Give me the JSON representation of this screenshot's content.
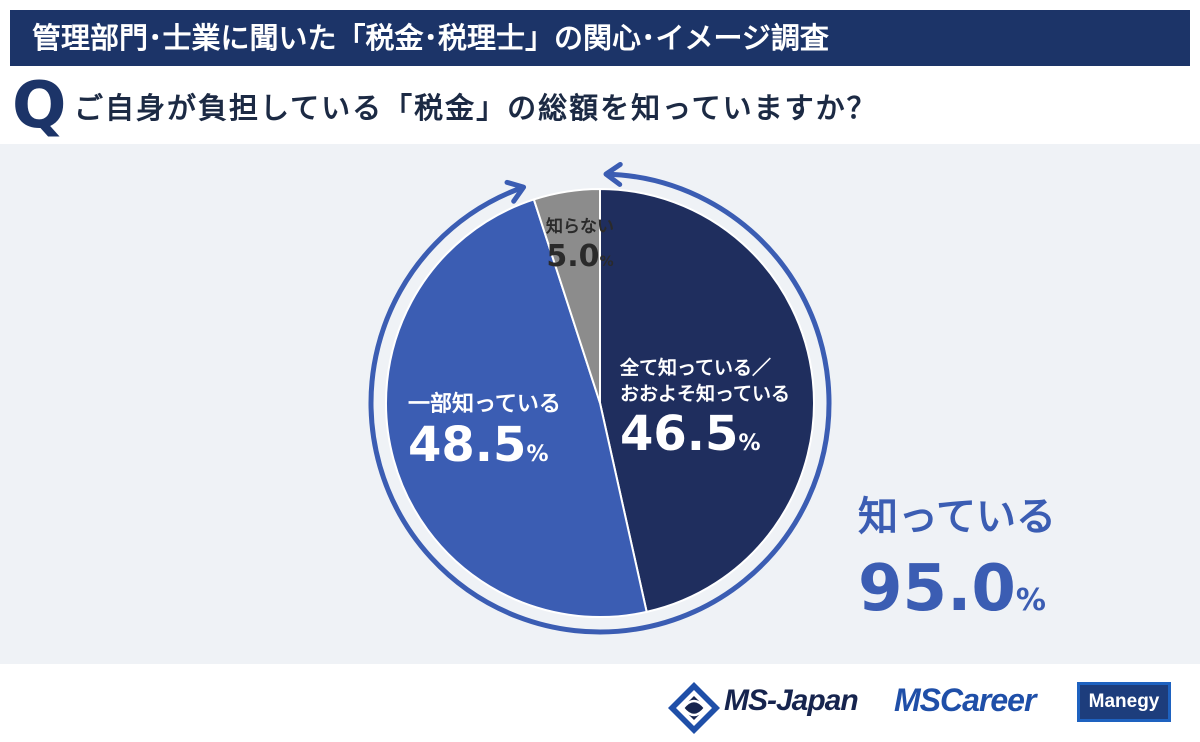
{
  "header": {
    "title": "管理部門･士業に聞いた「税金･税理士」の関心･イメージ調査"
  },
  "question": {
    "mark": "Q",
    "text": "ご自身が負担している「税金」の総額を知っていますか？"
  },
  "chart_data": {
    "type": "pie",
    "unit": "%",
    "slices": [
      {
        "label_lines": [
          "全て知っている／",
          "おおよそ知っている"
        ],
        "value": 46.5,
        "value_text": "46.5",
        "color": "#1f2e5e",
        "label_color": "#ffffff"
      },
      {
        "label_lines": [
          "一部知っている"
        ],
        "value": 48.5,
        "value_text": "48.5",
        "color": "#3b5db3",
        "label_color": "#ffffff"
      },
      {
        "label_lines": [
          "知らない"
        ],
        "value": 5.0,
        "value_text": "5.0",
        "color": "#8c8c8c",
        "label_color": "#2a2a2a"
      }
    ],
    "summary": {
      "label": "知っている",
      "value": 95.0,
      "value_text": "95.0",
      "color": "#3b5db3"
    },
    "ring_color": "#3b5db3"
  },
  "footer": {
    "logos": {
      "msjapan": "MS-Japan",
      "mscareer": "MSCareer",
      "manegy": "Manegy"
    },
    "colors": {
      "navy": "#16244e",
      "blue": "#1f4fa8"
    }
  }
}
